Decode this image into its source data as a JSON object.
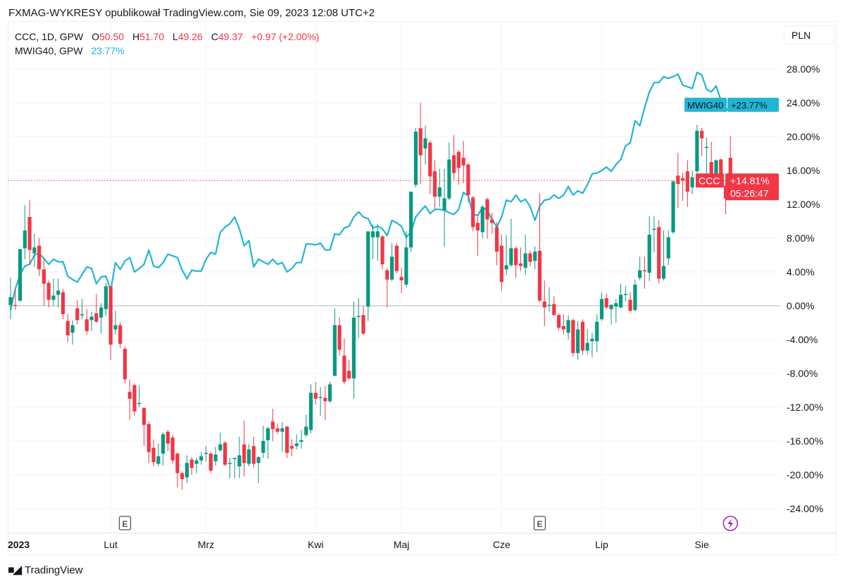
{
  "header": {
    "text": "FXMAG-WYKRESY opublikował TradingView.com, Sie 09, 2023 12:08 UTC+2"
  },
  "legend": {
    "main": {
      "symbol": "CCC, 1D, GPW",
      "o_label": "O",
      "o": "50.50",
      "h_label": "H",
      "h": "51.70",
      "l_label": "L",
      "l": "49.26",
      "c_label": "C",
      "c": "49.37",
      "change": "+0.97 (+2.00%)"
    },
    "compare": {
      "symbol": "MWIG40, GPW",
      "value": "23.77%"
    }
  },
  "currency": "PLN",
  "footer": {
    "brand": "TradingView"
  },
  "colors": {
    "up": "#089981",
    "down": "#f23645",
    "compare_line": "#22b5d3",
    "event_icon": "#9c27b0"
  },
  "chart_data": {
    "type": "candlestick+line",
    "scale": "percent",
    "ylim": [
      -26,
      30
    ],
    "y_ticks": [
      "28.00%",
      "24.00%",
      "20.00%",
      "16.00%",
      "12.00%",
      "8.00%",
      "4.00%",
      "0.00%",
      "-4.00%",
      "-8.00%",
      "-12.00%",
      "-16.00%",
      "-20.00%",
      "-24.00%"
    ],
    "y_tick_values": [
      28,
      24,
      20,
      16,
      12,
      8,
      4,
      0,
      -4,
      -8,
      -12,
      -16,
      -20,
      -24
    ],
    "x_ticks": [
      {
        "label": "2023",
        "index": 0
      },
      {
        "label": "Lut",
        "index": 21
      },
      {
        "label": "Mrz",
        "index": 41
      },
      {
        "label": "Kwi",
        "index": 64
      },
      {
        "label": "Maj",
        "index": 82
      },
      {
        "label": "Cze",
        "index": 103
      },
      {
        "label": "Lip",
        "index": 124
      },
      {
        "label": "Sie",
        "index": 145
      }
    ],
    "grid": true,
    "events": [
      {
        "type": "earnings",
        "label": "E",
        "index": 24
      },
      {
        "type": "earnings",
        "label": "E",
        "index": 111
      },
      {
        "type": "dividend-flash",
        "index": 151
      }
    ],
    "last_price_labels": [
      {
        "name": "MWIG40",
        "value": "+23.77%",
        "pct": 23.77,
        "color": "#22b5d3"
      },
      {
        "name": "CCC",
        "value": "+14.81%",
        "pct": 14.81,
        "countdown": "05:26:47",
        "color": "#f23645"
      }
    ],
    "series": [
      {
        "name": "CCC",
        "type": "candlestick",
        "ohlc_pct": [
          [
            0.1,
            3.3,
            -1.6,
            1.0
          ],
          [
            0.1,
            2.0,
            -0.5,
            0.0
          ],
          [
            0.6,
            6.7,
            0.5,
            6.7
          ],
          [
            6.8,
            11.9,
            5.5,
            8.9
          ],
          [
            10.5,
            12.5,
            4.8,
            6.6
          ],
          [
            6.2,
            8.5,
            4.6,
            6.9
          ],
          [
            7.1,
            8.0,
            3.5,
            4.3
          ],
          [
            4.3,
            5.7,
            0.0,
            2.6
          ],
          [
            2.7,
            3.0,
            -0.2,
            0.7
          ],
          [
            0.7,
            3.2,
            0.0,
            1.2
          ],
          [
            1.3,
            3.2,
            -0.2,
            1.8
          ],
          [
            1.6,
            2.0,
            -1.6,
            -1.0
          ],
          [
            -1.8,
            -1.0,
            -4.3,
            -3.5
          ],
          [
            -3.2,
            -1.7,
            -4.6,
            -2.3
          ],
          [
            -0.3,
            0.7,
            -2.2,
            -1.7
          ],
          [
            -1.0,
            0.8,
            -1.6,
            -1.0
          ],
          [
            -1.6,
            -0.4,
            -3.4,
            -3.0
          ],
          [
            -1.7,
            -0.7,
            -3.0,
            -1.3
          ],
          [
            -0.9,
            1.4,
            -2.0,
            -1.9
          ],
          [
            -1.4,
            0.3,
            -3.3,
            -0.2
          ],
          [
            -0.4,
            2.7,
            -1.2,
            2.3
          ],
          [
            2.3,
            2.3,
            -6.4,
            -4.6
          ],
          [
            -2.8,
            -0.6,
            -3.4,
            -2.3
          ],
          [
            -2.3,
            -1.9,
            -5.0,
            -4.5
          ],
          [
            -5.1,
            -4.8,
            -9.2,
            -8.7
          ],
          [
            -10.2,
            -8.7,
            -13.5,
            -11.0
          ],
          [
            -9.4,
            -9.2,
            -13.0,
            -12.5
          ],
          [
            -11.6,
            -9.4,
            -12.0,
            -11.5
          ],
          [
            -12.1,
            -12.0,
            -16.6,
            -14.1
          ],
          [
            -14.0,
            -13.7,
            -18.6,
            -17.3
          ],
          [
            -16.8,
            -15.8,
            -19.0,
            -18.5
          ],
          [
            -18.7,
            -16.3,
            -19.0,
            -17.8
          ],
          [
            -17.5,
            -15.0,
            -18.9,
            -15.2
          ],
          [
            -14.9,
            -14.7,
            -17.2,
            -16.3
          ],
          [
            -15.6,
            -15.3,
            -18.7,
            -18.3
          ],
          [
            -17.5,
            -17.3,
            -21.5,
            -19.8
          ],
          [
            -19.8,
            -19.6,
            -21.8,
            -20.5
          ],
          [
            -20.3,
            -17.7,
            -21.0,
            -18.6
          ],
          [
            -18.2,
            -17.9,
            -20.0,
            -19.2
          ],
          [
            -18.7,
            -18.0,
            -19.8,
            -18.3
          ],
          [
            -18.3,
            -17.3,
            -18.8,
            -17.8
          ],
          [
            -17.5,
            -16.6,
            -18.4,
            -17.4
          ],
          [
            -17.5,
            -17.3,
            -19.8,
            -19.5
          ],
          [
            -18.4,
            -16.7,
            -18.9,
            -17.6
          ],
          [
            -17.1,
            -15.0,
            -17.3,
            -16.4
          ],
          [
            -16.2,
            -16.0,
            -19.0,
            -18.8
          ],
          [
            -18.7,
            -18.0,
            -20.4,
            -18.6
          ],
          [
            -18.1,
            -18.0,
            -20.4,
            -18.0
          ],
          [
            -19.0,
            -15.5,
            -20.4,
            -17.7
          ],
          [
            -16.4,
            -13.6,
            -20.2,
            -18.6
          ],
          [
            -18.7,
            -16.4,
            -19.0,
            -17.0
          ],
          [
            -16.6,
            -15.5,
            -19.2,
            -18.7
          ],
          [
            -18.6,
            -17.8,
            -21.0,
            -17.9
          ],
          [
            -17.4,
            -14.2,
            -18.0,
            -16.0
          ],
          [
            -15.9,
            -14.3,
            -18.1,
            -14.5
          ],
          [
            -13.7,
            -12.2,
            -16.0,
            -14.6
          ],
          [
            -14.5,
            -13.9,
            -15.2,
            -14.9
          ],
          [
            -14.9,
            -13.8,
            -17.3,
            -14.5
          ],
          [
            -14.3,
            -14.2,
            -18.0,
            -17.4
          ],
          [
            -16.6,
            -15.8,
            -17.8,
            -16.9
          ],
          [
            -16.6,
            -15.2,
            -17.0,
            -16.3
          ],
          [
            -16.1,
            -14.7,
            -16.9,
            -15.9
          ],
          [
            -15.3,
            -12.9,
            -15.5,
            -14.3
          ],
          [
            -14.7,
            -9.3,
            -15.1,
            -10.3
          ],
          [
            -10.3,
            -9.0,
            -11.7,
            -11.0
          ],
          [
            -10.9,
            -9.6,
            -13.0,
            -10.8
          ],
          [
            -10.9,
            -9.5,
            -13.5,
            -11.3
          ],
          [
            -11.3,
            -9.0,
            -11.5,
            -9.3
          ],
          [
            -8.3,
            -0.3,
            -8.3,
            -2.3
          ],
          [
            -2.3,
            -1.4,
            -5.9,
            -5.2
          ],
          [
            -5.9,
            -3.9,
            -9.3,
            -9.0
          ],
          [
            -7.7,
            -6.4,
            -8.8,
            -8.6
          ],
          [
            -8.6,
            0.5,
            -11.0,
            -1.4
          ],
          [
            -1.3,
            0.9,
            -3.8,
            -1.2
          ],
          [
            -1.1,
            -0.1,
            -3.4,
            -3.3
          ],
          [
            -0.1,
            8.8,
            -1.8,
            8.8
          ],
          [
            8.1,
            9.6,
            5.5,
            8.8
          ],
          [
            8.1,
            9.7,
            5.3,
            8.8
          ],
          [
            8.2,
            8.4,
            4.3,
            4.9
          ],
          [
            4.2,
            4.5,
            -0.2,
            3.1
          ],
          [
            3.1,
            7.4,
            2.9,
            5.8
          ],
          [
            7.1,
            7.4,
            3.8,
            4.1
          ],
          [
            3.4,
            4.5,
            1.5,
            3.0
          ],
          [
            2.5,
            8.8,
            2.2,
            6.9
          ],
          [
            6.9,
            13.5,
            6.4,
            13.5
          ],
          [
            14.3,
            21.0,
            14.0,
            20.6
          ],
          [
            21.0,
            24.0,
            14.4,
            17.8
          ],
          [
            18.6,
            21.3,
            16.7,
            19.8
          ],
          [
            19.3,
            19.6,
            13.2,
            15.3
          ],
          [
            15.9,
            17.2,
            11.4,
            12.9
          ],
          [
            12.9,
            16.2,
            11.7,
            14.0
          ],
          [
            11.3,
            16.2,
            7.0,
            12.7
          ],
          [
            12.7,
            19.3,
            12.5,
            17.3
          ],
          [
            17.8,
            20.2,
            14.8,
            15.7
          ],
          [
            18.2,
            18.4,
            14.3,
            16.3
          ],
          [
            17.5,
            19.5,
            14.5,
            16.6
          ],
          [
            16.7,
            16.9,
            12.2,
            13.1
          ],
          [
            12.8,
            13.0,
            8.8,
            9.3
          ],
          [
            9.8,
            10.8,
            5.9,
            8.9
          ],
          [
            8.7,
            11.9,
            8.0,
            11.7
          ],
          [
            12.6,
            12.8,
            7.9,
            10.2
          ],
          [
            10.2,
            11.0,
            8.5,
            9.8
          ],
          [
            9.3,
            9.9,
            4.8,
            6.4
          ],
          [
            7.1,
            8.4,
            1.8,
            2.8
          ],
          [
            4.3,
            8.4,
            3.6,
            4.8
          ],
          [
            4.8,
            10.3,
            4.6,
            6.8
          ],
          [
            6.8,
            7.0,
            3.3,
            4.8
          ],
          [
            5.0,
            6.9,
            4.1,
            4.7
          ],
          [
            4.5,
            8.4,
            3.6,
            6.2
          ],
          [
            6.2,
            6.5,
            4.7,
            5.2
          ],
          [
            5.3,
            7.0,
            4.3,
            6.4
          ],
          [
            6.5,
            13.3,
            0.4,
            0.6
          ],
          [
            0.5,
            3.0,
            -2.4,
            -0.2
          ],
          [
            0.0,
            2.2,
            -0.7,
            0.1
          ],
          [
            0.2,
            1.1,
            -1.2,
            -1.1
          ],
          [
            -1.1,
            -0.9,
            -2.9,
            -2.6
          ],
          [
            -2.4,
            -1.0,
            -3.4,
            -2.8
          ],
          [
            -3.2,
            -1.1,
            -4.0,
            -1.7
          ],
          [
            -1.7,
            -1.5,
            -6.0,
            -5.6
          ],
          [
            -5.6,
            -1.8,
            -6.4,
            -2.8
          ],
          [
            -1.9,
            -1.6,
            -5.8,
            -5.3
          ],
          [
            -5.3,
            -2.8,
            -5.8,
            -4.4
          ],
          [
            -4.2,
            -3.2,
            -6.1,
            -3.9
          ],
          [
            -4.2,
            -1.0,
            -5.5,
            -1.9
          ],
          [
            -1.6,
            1.6,
            -1.8,
            0.8
          ],
          [
            0.9,
            1.4,
            -0.4,
            -0.2
          ],
          [
            -0.4,
            0.2,
            -2.2,
            0.1
          ],
          [
            -0.1,
            0.8,
            -2.0,
            0.3
          ],
          [
            -0.2,
            2.6,
            -0.3,
            1.3
          ],
          [
            1.3,
            2.3,
            0.5,
            1.4
          ],
          [
            0.7,
            1.6,
            -0.8,
            -0.6
          ],
          [
            -0.5,
            3.1,
            -0.7,
            2.5
          ],
          [
            3.3,
            5.8,
            3.0,
            4.2
          ],
          [
            4.2,
            5.8,
            2.0,
            4.1
          ],
          [
            3.9,
            10.6,
            2.9,
            8.4
          ],
          [
            9.0,
            10.6,
            6.3,
            9.1
          ],
          [
            9.3,
            10.1,
            2.6,
            3.2
          ],
          [
            3.2,
            8.9,
            3.0,
            4.7
          ],
          [
            5.6,
            8.9,
            4.8,
            8.1
          ],
          [
            8.7,
            14.9,
            8.5,
            14.7
          ],
          [
            15.4,
            18.1,
            11.6,
            14.4
          ],
          [
            15.1,
            15.7,
            12.4,
            14.8
          ],
          [
            15.9,
            17.2,
            11.7,
            13.5
          ],
          [
            14.0,
            16.0,
            13.2,
            15.2
          ],
          [
            15.9,
            21.4,
            15.7,
            20.7
          ],
          [
            20.7,
            21.0,
            17.7,
            19.8
          ],
          [
            18.7,
            19.9,
            15.1,
            18.8
          ],
          [
            17.0,
            19.4,
            14.0,
            14.2
          ],
          [
            14.3,
            17.3,
            14.1,
            17.2
          ],
          [
            17.3,
            17.4,
            14.1,
            14.3
          ],
          [
            14.2,
            14.8,
            10.8,
            12.7
          ],
          [
            17.5,
            20.1,
            14.6,
            14.81
          ]
        ]
      },
      {
        "name": "MWIG40",
        "type": "line",
        "values_pct": [
          -0.5,
          2.0,
          3.7,
          4.7,
          4.9,
          6.0,
          6.2,
          5.6,
          4.9,
          5.5,
          5.2,
          5.2,
          3.5,
          3.1,
          2.8,
          3.7,
          4.6,
          4.4,
          2.6,
          3.4,
          3.5,
          1.8,
          5.1,
          4.3,
          5.3,
          5.7,
          4.0,
          4.4,
          4.9,
          6.6,
          4.7,
          4.5,
          5.1,
          6.1,
          5.9,
          5.7,
          4.2,
          3.2,
          4.2,
          4.1,
          4.1,
          5.5,
          6.3,
          6.1,
          8.7,
          9.3,
          9.7,
          10.5,
          9.1,
          7.1,
          7.7,
          4.6,
          5.5,
          5.2,
          4.9,
          5.5,
          4.9,
          5.1,
          4.0,
          4.4,
          5.1,
          5.1,
          7.3,
          7.3,
          7.2,
          7.4,
          6.6,
          6.6,
          8.5,
          8.4,
          9.2,
          9.4,
          10.5,
          11.1,
          10.5,
          10.3,
          9.2,
          9.4,
          9.1,
          8.3,
          10.1,
          9.8,
          9.4,
          8.1,
          8.7,
          10.5,
          11.2,
          11.8,
          10.9,
          11.4,
          11.4,
          11.3,
          11.0,
          10.8,
          11.4,
          13.4,
          13.0,
          10.8,
          10.7,
          11.6,
          11.3,
          10.2,
          9.3,
          10.5,
          12.5,
          12.3,
          13.1,
          12.3,
          12.6,
          11.7,
          10.1,
          11.8,
          12.5,
          12.6,
          13.1,
          12.7,
          13.1,
          14.1,
          13.1,
          13.6,
          13.3,
          14.3,
          15.6,
          15.7,
          16.0,
          16.4,
          15.9,
          16.7,
          17.3,
          18.9,
          19.3,
          21.9,
          21.3,
          23.4,
          25.3,
          26.4,
          26.4,
          27.1,
          26.9,
          27.1,
          27.4,
          26.1,
          25.9,
          25.7,
          27.6,
          27.3,
          25.6,
          25.3,
          26.0,
          24.3,
          23.0,
          23.77
        ]
      }
    ]
  }
}
